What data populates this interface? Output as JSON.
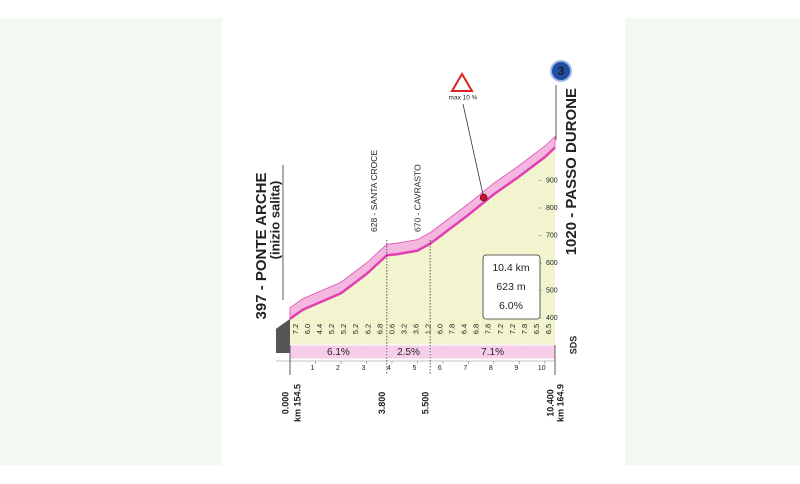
{
  "chart_data": {
    "type": "area",
    "x": [
      0,
      0.5,
      1,
      2,
      3,
      3.8,
      4.2,
      5,
      5.5,
      6,
      7,
      8,
      9,
      10,
      10.4
    ],
    "values": [
      397,
      430,
      450,
      490,
      560,
      628,
      632,
      645,
      670,
      705,
      775,
      850,
      915,
      985,
      1020
    ],
    "xlim": [
      0,
      10.4
    ],
    "ylim": [
      320,
      1100
    ],
    "yticks": [
      400,
      500,
      600,
      700,
      800,
      900
    ],
    "xticks": [
      1,
      2,
      3,
      4,
      5,
      6,
      7,
      8,
      9,
      10
    ],
    "start": {
      "label": "397 - PONTE ARCHE",
      "note": "(inizio salita)",
      "km": "km 154.5"
    },
    "finish": {
      "label": "1020 - PASSO DURONE",
      "km": "km 164.9",
      "badge": "3"
    },
    "waypoints": [
      "628 - SANTA CROCE",
      "670 - CAVRASTO"
    ],
    "sectors": {
      "bounds": [
        {
          "value": 0,
          "label": "0.000"
        },
        {
          "value": 3.8,
          "label": "3.800"
        },
        {
          "value": 5.5,
          "label": "5.500"
        },
        {
          "value": 10.4,
          "label": "10.400"
        }
      ],
      "values": [
        6.1,
        2.5,
        7.1
      ],
      "value_labels": [
        "6.1%",
        "2.5%",
        "7.1%"
      ]
    },
    "gradients": {
      "values": [
        7.2,
        6.0,
        4.4,
        5.2,
        5.2,
        5.2,
        6.2,
        6.8,
        0.6,
        3.2,
        3.6,
        1.2,
        6.0,
        7.8,
        6.4,
        6.8,
        7.8,
        7.2,
        7.2,
        7.8,
        6.5,
        6.5
      ],
      "value_labels": [
        "7.2",
        "6.0",
        "4.4",
        "5.2",
        "5.2",
        "5.2",
        "6.2",
        "6.8",
        "0.6",
        "3.2",
        "3.6",
        "1.2",
        "6.0",
        "7.8",
        "6.4",
        "6.8",
        "7.8",
        "7.2",
        "7.2",
        "7.8",
        "6.5",
        "6.5"
      ]
    },
    "summary": [
      "10.4 km",
      "623 m",
      "6.0%"
    ],
    "max_gradient": {
      "label": "max 10 %",
      "km": 7.6
    },
    "logo": "SDS"
  }
}
